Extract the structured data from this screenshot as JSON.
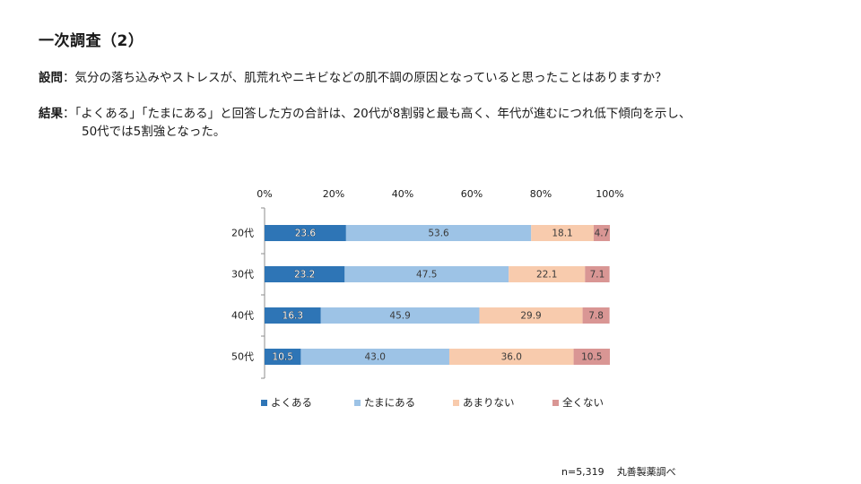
{
  "title": "一次調査（2）",
  "question": {
    "label": "設問",
    "sep": "：",
    "text": "気分の落ち込みやストレスが、肌荒れやニキビなどの肌不調の原因となっていると思ったことはありますか？"
  },
  "result": {
    "label": "結果",
    "sep": "：",
    "line1": "「よくある」「たまにある」と回答した方の合計は、20代が8割弱と最も高く、年代が進むにつれ低下傾向を示し、",
    "line2": "50代では5割強となった。"
  },
  "chart_data": {
    "type": "bar",
    "orientation": "horizontal",
    "stacked": true,
    "percent": true,
    "categories": [
      "20代",
      "30代",
      "40代",
      "50代"
    ],
    "series": [
      {
        "name": "よくある",
        "color": "#2E75B6",
        "values": [
          23.6,
          23.2,
          16.3,
          10.5
        ]
      },
      {
        "name": "たまにある",
        "color": "#9DC3E6",
        "values": [
          53.6,
          47.5,
          45.9,
          43.0
        ]
      },
      {
        "name": "あまりない",
        "color": "#F8CBAD",
        "values": [
          18.1,
          22.1,
          29.9,
          36.0
        ]
      },
      {
        "name": "全くない",
        "color": "#D99694",
        "values": [
          4.7,
          7.1,
          7.8,
          10.5
        ]
      }
    ],
    "data_labels": [
      [
        "23.6",
        "53.6",
        "18.1",
        "4.7"
      ],
      [
        "23.2",
        "47.5",
        "22.1",
        "7.1"
      ],
      [
        "16.3",
        "45.9",
        "29.9",
        "7.8"
      ],
      [
        "10.5",
        "43.0",
        "36.0",
        "10.5"
      ]
    ],
    "xticks": [
      "0%",
      "20%",
      "40%",
      "60%",
      "80%",
      "100%"
    ],
    "xlim": [
      0,
      100
    ],
    "axis_position": "top",
    "legend_position": "bottom"
  },
  "footer": {
    "n": "n=5,319",
    "source": "丸善製薬調べ"
  }
}
